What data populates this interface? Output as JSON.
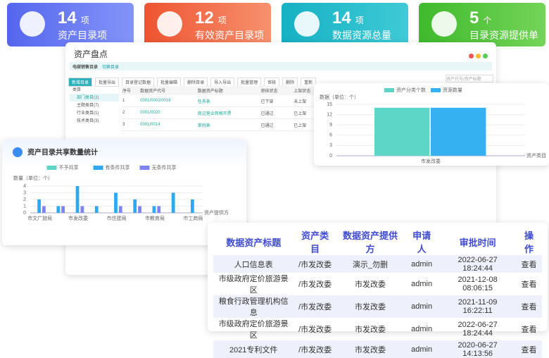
{
  "stats": [
    {
      "number": 14,
      "unit": "项",
      "label": "资产目录项"
    },
    {
      "number": 12,
      "unit": "项",
      "label": "有效资产目录项"
    },
    {
      "number": 14,
      "unit": "项",
      "label": "数据资源总量"
    },
    {
      "number": 5,
      "unit": "个",
      "label": "目录资源提供单位"
    }
  ],
  "window": {
    "title": "资产盘点",
    "subtitle": "电碳销售目录",
    "link": "切换目录",
    "toolbar": [
      "新增目录",
      "批量导出",
      "目录登记数据",
      "批量编辑",
      "删除目录",
      "导入导出",
      "批量管理",
      "审核",
      "删除",
      "重新"
    ],
    "search_placeholder": "资产代号/资产标题",
    "tree": [
      "类目",
      "部门类目(3)",
      "主题类目(7)",
      "行业类目(1)",
      "技术类目(3)"
    ],
    "columns": [
      "序号",
      "数据资产代号",
      "数据资产标题",
      "审核状态",
      "上架状态"
    ],
    "rows": [
      [
        "1",
        "0001/0002/0018",
        "任务表",
        "已下架",
        "未上架"
      ],
      [
        "2",
        "0001/0020",
        "周边营业网格开票",
        "已通过",
        "已上架"
      ],
      [
        "3",
        "0001/0014",
        "案例表",
        "已通过",
        "已上架"
      ]
    ]
  },
  "chart_data": [
    {
      "type": "bar",
      "title": "资产目录共享数量统计",
      "y_label": "数量（单位：个）",
      "x_label": "资产提供方",
      "categories": [
        "市文广旅局",
        null,
        "市发改委",
        null,
        "市住建局",
        null,
        "市教育局",
        null,
        "市工商局"
      ],
      "series": [
        {
          "name": "不予共享",
          "color": "#5dd6c8",
          "values": [
            0,
            0,
            0,
            0,
            0,
            0,
            0,
            0,
            0
          ]
        },
        {
          "name": "有条件共享",
          "color": "#2ea8f0",
          "values": [
            2,
            1,
            4,
            1,
            3,
            2,
            1,
            3,
            2
          ]
        },
        {
          "name": "无条件共享",
          "color": "#7f84f5",
          "values": [
            1,
            1,
            1,
            0,
            1,
            1,
            1,
            0,
            0
          ]
        }
      ],
      "ylim": [
        0,
        4
      ],
      "yticks": [
        0,
        1,
        2,
        3,
        4
      ]
    },
    {
      "type": "bar",
      "y_label": "数据（单位：个）",
      "x_label": "资产类目",
      "categories": [
        "市发改委"
      ],
      "series": [
        {
          "name": "资产分类个数",
          "color": "#5dd6c8",
          "values": [
            14
          ]
        },
        {
          "name": "资源数量",
          "color": "#35b0f0",
          "values": [
            14
          ]
        }
      ],
      "ylim": [
        0,
        15
      ],
      "yticks": [
        0,
        3,
        6,
        9,
        12,
        15
      ]
    }
  ],
  "table": {
    "columns": [
      "数据资产标题",
      "资产类目",
      "数据资产提供方",
      "申请人",
      "审批时间",
      "操作"
    ],
    "rows": [
      [
        "人口信息表",
        "/市发改委",
        "演示_勿删",
        "admin",
        "2022-06-27 18:24:44",
        "查看"
      ],
      [
        "市级政府定价旅游景区",
        "/市发改委",
        "市发改委",
        "admin",
        "2021-12-08 08:06:15",
        "查看"
      ],
      [
        "粮食行政管理机构信息",
        "/市发改委",
        "市发改委",
        "admin",
        "2021-11-09 16:22:11",
        "查看"
      ],
      [
        "市级政府定价旅游景区",
        "/市发改委",
        "市发改委",
        "admin",
        "2022-06-27 18:24:44",
        "查看"
      ],
      [
        "2021专利文件",
        "/市发改委",
        "市发改委",
        "admin",
        "2020-06-27 14:13:56",
        "查看"
      ]
    ]
  }
}
